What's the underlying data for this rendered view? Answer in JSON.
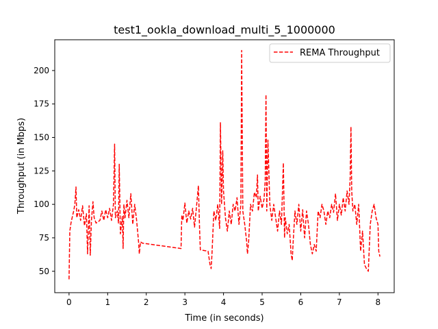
{
  "chart_data": {
    "type": "line",
    "title": "test1_ookla_download_multi_5_1000000",
    "xlabel": "Time (in seconds)",
    "ylabel": "Throughput (in Mbps)",
    "xlim": [
      -0.37,
      8.42
    ],
    "ylim": [
      34,
      223
    ],
    "xticks": [
      0,
      1,
      2,
      3,
      4,
      5,
      6,
      7,
      8
    ],
    "yticks": [
      50,
      75,
      100,
      125,
      150,
      175,
      200
    ],
    "legend_position": "top-right",
    "series": [
      {
        "name": "REMA Throughput",
        "color": "#ff0000",
        "style": "dashed",
        "points": [
          [
            0.0,
            44
          ],
          [
            0.02,
            80
          ],
          [
            0.05,
            86
          ],
          [
            0.08,
            90
          ],
          [
            0.12,
            95
          ],
          [
            0.15,
            100
          ],
          [
            0.18,
            113
          ],
          [
            0.2,
            90
          ],
          [
            0.25,
            96
          ],
          [
            0.3,
            88
          ],
          [
            0.35,
            99
          ],
          [
            0.4,
            84
          ],
          [
            0.45,
            93
          ],
          [
            0.48,
            63
          ],
          [
            0.52,
            99
          ],
          [
            0.55,
            62
          ],
          [
            0.58,
            88
          ],
          [
            0.62,
            102
          ],
          [
            0.65,
            90
          ],
          [
            0.7,
            86
          ],
          [
            0.8,
            88
          ],
          [
            0.85,
            95
          ],
          [
            0.9,
            88
          ],
          [
            0.95,
            96
          ],
          [
            1.0,
            90
          ],
          [
            1.05,
            97
          ],
          [
            1.1,
            88
          ],
          [
            1.15,
            100
          ],
          [
            1.18,
            145
          ],
          [
            1.2,
            90
          ],
          [
            1.25,
            95
          ],
          [
            1.28,
            86
          ],
          [
            1.3,
            130
          ],
          [
            1.33,
            78
          ],
          [
            1.38,
            91
          ],
          [
            1.4,
            67
          ],
          [
            1.42,
            100
          ],
          [
            1.45,
            90
          ],
          [
            1.5,
            103
          ],
          [
            1.55,
            90
          ],
          [
            1.6,
            108
          ],
          [
            1.65,
            85
          ],
          [
            1.7,
            100
          ],
          [
            1.75,
            88
          ],
          [
            1.8,
            72
          ],
          [
            1.82,
            63
          ],
          [
            1.85,
            72
          ],
          [
            1.9,
            71
          ],
          [
            2.9,
            67
          ],
          [
            2.92,
            92
          ],
          [
            2.95,
            88
          ],
          [
            3.0,
            101
          ],
          [
            3.05,
            86
          ],
          [
            3.1,
            95
          ],
          [
            3.15,
            89
          ],
          [
            3.2,
            97
          ],
          [
            3.25,
            83
          ],
          [
            3.3,
            98
          ],
          [
            3.35,
            114
          ],
          [
            3.38,
            82
          ],
          [
            3.4,
            66
          ],
          [
            3.6,
            65
          ],
          [
            3.65,
            55
          ],
          [
            3.68,
            52
          ],
          [
            3.7,
            62
          ],
          [
            3.75,
            95
          ],
          [
            3.8,
            88
          ],
          [
            3.85,
            100
          ],
          [
            3.9,
            82
          ],
          [
            3.92,
            161
          ],
          [
            3.95,
            100
          ],
          [
            3.98,
            140
          ],
          [
            4.0,
            110
          ],
          [
            4.05,
            90
          ],
          [
            4.1,
            80
          ],
          [
            4.15,
            95
          ],
          [
            4.2,
            85
          ],
          [
            4.25,
            100
          ],
          [
            4.3,
            95
          ],
          [
            4.35,
            105
          ],
          [
            4.4,
            85
          ],
          [
            4.45,
            100
          ],
          [
            4.47,
            215
          ],
          [
            4.5,
            95
          ],
          [
            4.55,
            85
          ],
          [
            4.6,
            72
          ],
          [
            4.62,
            63
          ],
          [
            4.65,
            72
          ],
          [
            4.7,
            100
          ],
          [
            4.75,
            95
          ],
          [
            4.8,
            109
          ],
          [
            4.85,
            105
          ],
          [
            4.88,
            122
          ],
          [
            4.9,
            95
          ],
          [
            4.95,
            106
          ],
          [
            5.0,
            97
          ],
          [
            5.05,
            104
          ],
          [
            5.08,
            118
          ],
          [
            5.1,
            182
          ],
          [
            5.12,
            95
          ],
          [
            5.15,
            148
          ],
          [
            5.2,
            100
          ],
          [
            5.25,
            88
          ],
          [
            5.3,
            100
          ],
          [
            5.35,
            90
          ],
          [
            5.4,
            80
          ],
          [
            5.45,
            95
          ],
          [
            5.5,
            85
          ],
          [
            5.55,
            131
          ],
          [
            5.58,
            75
          ],
          [
            5.6,
            90
          ],
          [
            5.65,
            78
          ],
          [
            5.7,
            85
          ],
          [
            5.75,
            63
          ],
          [
            5.78,
            58
          ],
          [
            5.8,
            70
          ],
          [
            5.85,
            95
          ],
          [
            5.9,
            85
          ],
          [
            5.95,
            100
          ],
          [
            6.0,
            80
          ],
          [
            6.05,
            96
          ],
          [
            6.1,
            75
          ],
          [
            6.15,
            95
          ],
          [
            6.2,
            85
          ],
          [
            6.25,
            70
          ],
          [
            6.3,
            63
          ],
          [
            6.35,
            70
          ],
          [
            6.4,
            65
          ],
          [
            6.45,
            95
          ],
          [
            6.5,
            90
          ],
          [
            6.55,
            100
          ],
          [
            6.6,
            95
          ],
          [
            6.65,
            85
          ],
          [
            6.7,
            95
          ],
          [
            6.75,
            90
          ],
          [
            6.8,
            100
          ],
          [
            6.85,
            94
          ],
          [
            6.9,
            108
          ],
          [
            6.95,
            88
          ],
          [
            7.0,
            100
          ],
          [
            7.05,
            92
          ],
          [
            7.1,
            105
          ],
          [
            7.15,
            95
          ],
          [
            7.2,
            110
          ],
          [
            7.25,
            100
          ],
          [
            7.28,
            120
          ],
          [
            7.3,
            158
          ],
          [
            7.32,
            110
          ],
          [
            7.35,
            95
          ],
          [
            7.4,
            100
          ],
          [
            7.45,
            85
          ],
          [
            7.5,
            100
          ],
          [
            7.55,
            65
          ],
          [
            7.6,
            80
          ],
          [
            7.65,
            55
          ],
          [
            7.7,
            52
          ],
          [
            7.75,
            50
          ],
          [
            7.8,
            85
          ],
          [
            7.85,
            95
          ],
          [
            7.9,
            100
          ],
          [
            7.95,
            90
          ],
          [
            8.0,
            85
          ],
          [
            8.02,
            65
          ],
          [
            8.05,
            61
          ]
        ]
      }
    ]
  }
}
